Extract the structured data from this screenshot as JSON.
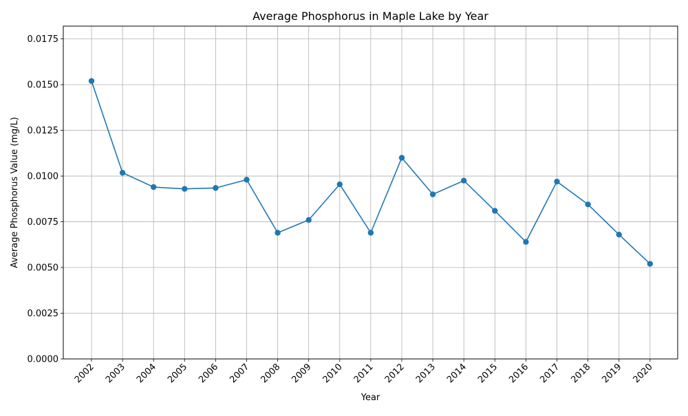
{
  "chart_data": {
    "type": "line",
    "title": "Average Phosphorus in Maple Lake by Year",
    "xlabel": "Year",
    "ylabel": "Average Phosphorus Value (mg/L)",
    "x": [
      "2002",
      "2003",
      "2004",
      "2005",
      "2006",
      "2007",
      "2008",
      "2009",
      "2010",
      "2011",
      "2012",
      "2013",
      "2014",
      "2015",
      "2016",
      "2017",
      "2018",
      "2019",
      "2020"
    ],
    "series": [
      {
        "values": [
          0.0152,
          0.01018,
          0.0094,
          0.0093,
          0.00935,
          0.0098,
          0.0069,
          0.0076,
          0.00955,
          0.0069,
          0.011,
          0.009,
          0.00975,
          0.0081,
          0.0064,
          0.0097,
          0.00845,
          0.0068,
          0.0052
        ],
        "color": "#1f77b4",
        "marker": "circle"
      }
    ],
    "ylim": [
      0,
      0.0182
    ],
    "yticks": [
      "0.0000",
      "0.0025",
      "0.0050",
      "0.0075",
      "0.0100",
      "0.0125",
      "0.0150",
      "0.0175"
    ],
    "ytick_values": [
      0,
      0.0025,
      0.005,
      0.0075,
      0.01,
      0.0125,
      0.015,
      0.0175
    ],
    "grid": true,
    "legend": "none",
    "x_tick_rotation": 45
  }
}
